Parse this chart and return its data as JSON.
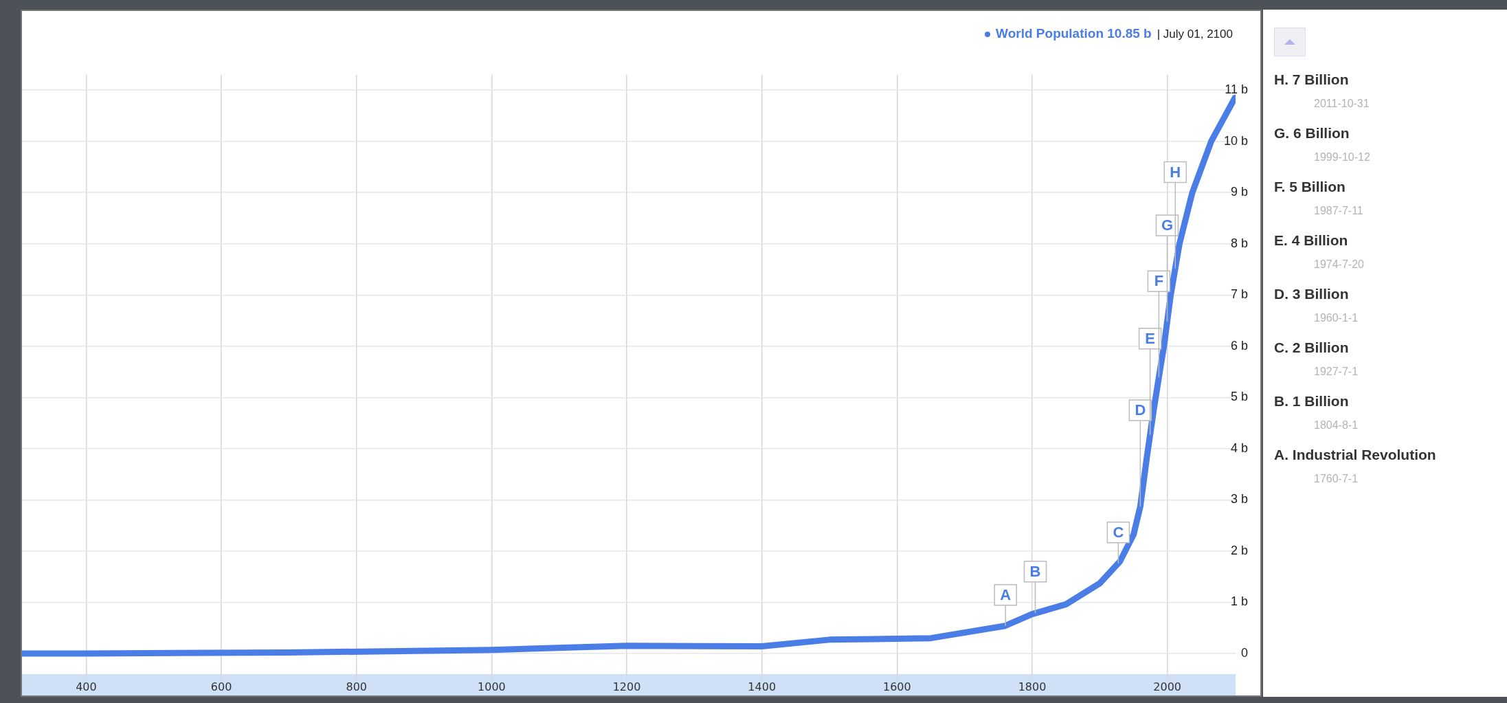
{
  "chart_data": {
    "type": "line",
    "x": [
      305,
      400,
      700,
      1000,
      1200,
      1400,
      1500,
      1650,
      1760,
      1800,
      1850,
      1900,
      1930,
      1950,
      1960,
      1970,
      1980,
      1990,
      1995,
      2005,
      2018,
      2037,
      2065,
      2100
    ],
    "series": [
      {
        "name": "World Population",
        "color": "#4a7de6",
        "values": [
          0,
          0,
          0.02,
          0.07,
          0.15,
          0.14,
          0.27,
          0.3,
          0.54,
          0.77,
          0.96,
          1.37,
          1.8,
          2.32,
          2.87,
          3.86,
          4.77,
          5.6,
          6.0,
          7.0,
          8.0,
          9.0,
          10.0,
          10.85
        ]
      }
    ],
    "xlim": [
      305,
      2101
    ],
    "xticks": [
      400,
      600,
      800,
      1000,
      1200,
      1400,
      1600,
      1800,
      2000
    ],
    "ylim": [
      -0.4,
      11.3
    ],
    "yticks": [
      0,
      {
        "value": 1,
        "label": "1 b"
      },
      {
        "value": 2,
        "label": "2 b"
      },
      {
        "value": 3,
        "label": "3 b"
      },
      {
        "value": 4,
        "label": "4 b"
      },
      {
        "value": 5,
        "label": "5 b"
      },
      {
        "value": 6,
        "label": "6 b"
      },
      {
        "value": 7,
        "label": "7 b"
      },
      {
        "value": 8,
        "label": "8 b"
      },
      {
        "value": 9,
        "label": "9 b"
      },
      {
        "value": 10,
        "label": "10 b"
      },
      {
        "value": 11,
        "label": "11 b"
      }
    ],
    "grid": true,
    "marker": "none",
    "line_style": "solid",
    "annotations": [
      "10.85 b",
      "| July 01, 2100",
      {
        "text": "A",
        "x": 1760.5,
        "y": 0.54
      },
      {
        "text": "B",
        "x": 1804.6,
        "y": 0.79
      },
      {
        "text": "C",
        "x": 1927.5,
        "y": 1.76
      },
      {
        "text": "D",
        "x": 1960,
        "y": 2.87
      },
      {
        "text": "E",
        "x": 1974.5,
        "y": 4.27
      },
      {
        "text": "F",
        "x": 1987.5,
        "y": 5.39
      },
      {
        "text": "G",
        "x": 1999.8,
        "y": 6.48
      },
      {
        "text": "H",
        "x": 2011.8,
        "y": 7.52
      },
      "H. 7 Billion",
      "2011-10-31",
      "G. 6 Billion",
      "1999-10-12",
      "F. 5 Billion",
      "1987-7-11",
      "E. 4 Billion",
      "1974-7-20",
      "D. 3 Billion",
      "1960-1-1",
      "C. 2 Billion",
      "1927-7-1",
      "B. 1 Billion",
      "1804-8-1",
      "A. Industrial Revolution",
      "1760-7-1"
    ]
  }
}
